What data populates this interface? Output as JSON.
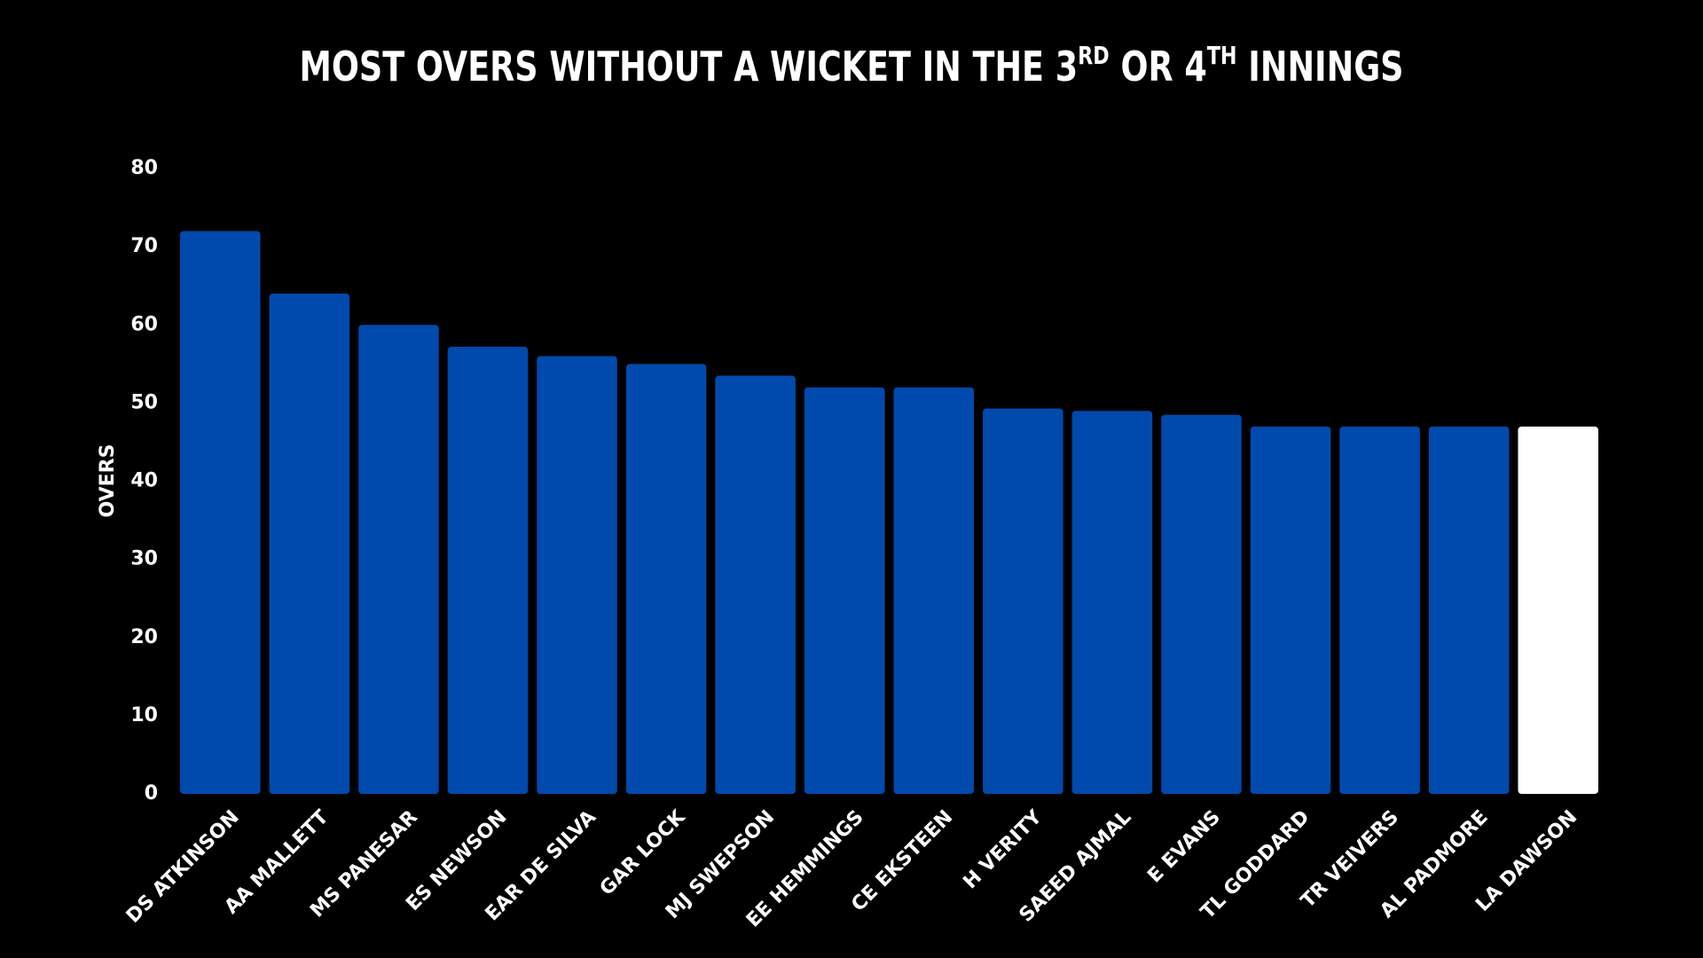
{
  "chart_data": {
    "type": "bar",
    "title": [
      "MOST OVERS WITHOUT A WICKET IN THE 3",
      "RD",
      " OR 4",
      "TH",
      " INNINGS"
    ],
    "y_label": "OVERS",
    "categories": [
      "DS ATKINSON",
      "AA MALLETT",
      "MS PANESAR",
      "ES NEWSON",
      "EAR DE SILVA",
      "GAR LOCK",
      "MJ SWEPSON",
      "EE HEMMINGS",
      "CE EKSTEEN",
      "H VERITY",
      "SAEED AJMAL",
      "E EVANS",
      "TL GODDARD",
      "TR VEIVERS",
      "AL PADMORE",
      "LA DAWSON"
    ],
    "values": [
      72,
      64,
      60,
      57.2,
      56,
      55,
      53.5,
      52,
      52,
      49.3,
      49,
      48.5,
      47,
      47,
      47,
      47
    ],
    "colors": [
      "#004aad",
      "#004aad",
      "#004aad",
      "#004aad",
      "#004aad",
      "#004aad",
      "#004aad",
      "#004aad",
      "#004aad",
      "#004aad",
      "#004aad",
      "#004aad",
      "#004aad",
      "#004aad",
      "#004aad",
      "#ffffff"
    ],
    "ylim": [
      0,
      80
    ],
    "yticks": [
      0,
      10,
      20,
      30,
      40,
      50,
      60,
      70,
      80
    ],
    "grid": false
  }
}
